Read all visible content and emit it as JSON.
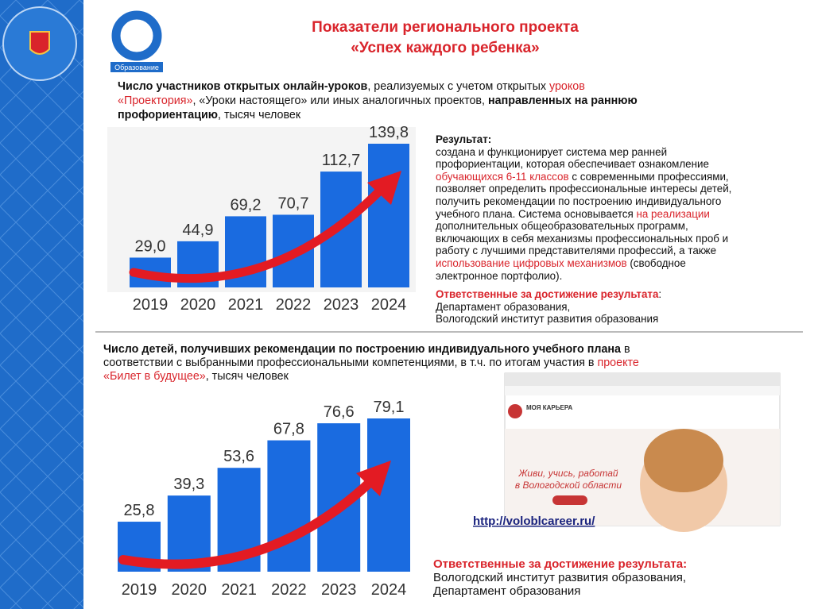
{
  "header": {
    "logo_label": "Образование",
    "title_line1": "Показатели регионального проекта",
    "title_line2": "«Успех каждого ребенка»"
  },
  "block1": {
    "lines": [
      [
        "Число участников открытых онлайн-уроков",
        ", реализуемых с учетом открытых ",
        "уроков"
      ],
      [
        "«Проектория»",
        ", «Уроки настоящего» или иных аналогичных проектов, ",
        "направленных на раннюю"
      ],
      [
        "профориентацию",
        ", тысяч человек"
      ]
    ]
  },
  "result": {
    "heading": "Результат:",
    "lines": [
      [
        "создана и функционирует система мер ранней"
      ],
      [
        "профориентации, которая обеспечивает ознакомление"
      ],
      [
        "обучающихся 6-11 классов",
        " с современными профессиями,"
      ],
      [
        "позволяет определить профессиональные интересы детей,"
      ],
      [
        "получить рекомендации по построению индивидуального"
      ],
      [
        "учебного плана. Система основывается ",
        "на реализации"
      ],
      [
        "дополнительных общеобразовательных программ,"
      ],
      [
        "включающих в себя механизмы профессиональных проб и"
      ],
      [
        "работу с лучшими представителями профессий, а также"
      ],
      [
        "использование цифровых механизмов",
        " (свободное"
      ],
      [
        "электронное портфолио)."
      ]
    ],
    "responsible_heading": "Ответственные за достижение результата",
    "responsible_colon": ":",
    "responsible": [
      "Департамент образования,",
      "Вологодский институт развития образования"
    ]
  },
  "block2": {
    "lines": [
      [
        "Число детей, получивших рекомендации по построению индивидуального учебного плана",
        " в"
      ],
      [
        "соответствии с выбранными профессиональными компетенциями, в т.ч. по итогам участия в ",
        "проекте"
      ],
      [
        "«Билет в будущее»",
        ", тысяч человек"
      ]
    ],
    "responsible_heading": "Ответственные за достижение результата:",
    "responsible": [
      "Вологодский институт развития образования,",
      "Департамент образования"
    ]
  },
  "screenshot": {
    "brand": "МОЯ КАРЬЕРА",
    "slogan1": "Живи, учись, работай",
    "slogan2": "в Вологодской области",
    "link": "http://voloblcareer.ru/"
  },
  "chart_data": [
    {
      "type": "bar",
      "categories": [
        "2019",
        "2020",
        "2021",
        "2022",
        "2023",
        "2024"
      ],
      "values": [
        29.0,
        44.9,
        69.2,
        70.7,
        112.7,
        139.8
      ],
      "value_labels": [
        "29,0",
        "44,9",
        "69,2",
        "70,7",
        "112,7",
        "139,8"
      ],
      "color": "#1a6be0"
    },
    {
      "type": "bar",
      "categories": [
        "2019",
        "2020",
        "2021",
        "2022",
        "2023",
        "2024"
      ],
      "values": [
        25.8,
        39.3,
        53.6,
        67.8,
        76.6,
        79.1
      ],
      "value_labels": [
        "25,8",
        "39,3",
        "53,6",
        "67,8",
        "76,6",
        "79,1"
      ],
      "color": "#1a6be0"
    }
  ]
}
